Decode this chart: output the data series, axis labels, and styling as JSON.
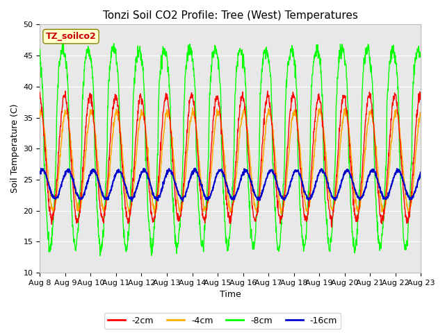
{
  "title": "Tonzi Soil CO2 Profile: Tree (West) Temperatures",
  "xlabel": "Time",
  "ylabel": "Soil Temperature (C)",
  "ylim": [
    10,
    50
  ],
  "xlim": [
    0,
    15
  ],
  "x_tick_labels": [
    "Aug 8",
    "Aug 9",
    "Aug 10",
    "Aug 11",
    "Aug 12",
    "Aug 13",
    "Aug 14",
    "Aug 15",
    "Aug 16",
    "Aug 17",
    "Aug 18",
    "Aug 19",
    "Aug 20",
    "Aug 21",
    "Aug 22",
    "Aug 23"
  ],
  "colors": {
    "-2cm": "#ff0000",
    "-4cm": "#ffaa00",
    "-8cm": "#00ff00",
    "-16cm": "#0000cc"
  },
  "legend_labels": [
    "-2cm",
    "-4cm",
    "-8cm",
    "-16cm"
  ],
  "plot_bg_color": "#e8e8e8",
  "fig_bg_color": "#ffffff",
  "annotation_text": "TZ_soilco2",
  "annotation_bg": "#ffffcc",
  "annotation_fg": "#cc0000",
  "title_fontsize": 11,
  "axis_fontsize": 9,
  "tick_fontsize": 8,
  "legend_fontsize": 9
}
